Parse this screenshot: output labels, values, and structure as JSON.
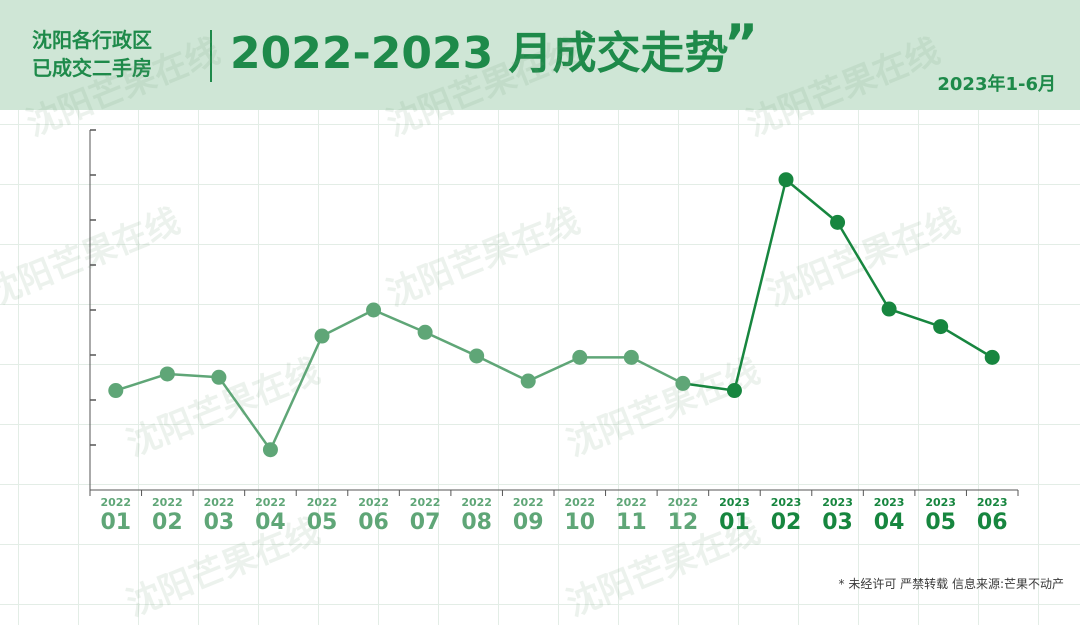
{
  "header": {
    "subject_line1": "沈阳各行政区",
    "subject_line2": "已成交二手房",
    "title": "2022-2023 月成交走势",
    "title_mark": "”",
    "period": "2023年1-6月"
  },
  "footer": {
    "note": "* 未经许可 严禁转载 信息来源:芒果不动产"
  },
  "watermark": {
    "text": "沈阳芒果在线"
  },
  "colors": {
    "band": "#cfe6d6",
    "accent": "#1e8a4a",
    "series_2022": "#5fa677",
    "series_2023": "#17863f",
    "axis": "#555555"
  },
  "chart_data": {
    "type": "line",
    "title": "2022-2023 月成交走势",
    "xlabel": "",
    "ylabel": "",
    "categories": [
      {
        "year": "2022",
        "month": "01"
      },
      {
        "year": "2022",
        "month": "02"
      },
      {
        "year": "2022",
        "month": "03"
      },
      {
        "year": "2022",
        "month": "04"
      },
      {
        "year": "2022",
        "month": "05"
      },
      {
        "year": "2022",
        "month": "06"
      },
      {
        "year": "2022",
        "month": "07"
      },
      {
        "year": "2022",
        "month": "08"
      },
      {
        "year": "2022",
        "month": "09"
      },
      {
        "year": "2022",
        "month": "10"
      },
      {
        "year": "2022",
        "month": "11"
      },
      {
        "year": "2022",
        "month": "12"
      },
      {
        "year": "2023",
        "month": "01"
      },
      {
        "year": "2023",
        "month": "02"
      },
      {
        "year": "2023",
        "month": "03"
      },
      {
        "year": "2023",
        "month": "04"
      },
      {
        "year": "2023",
        "month": "05"
      },
      {
        "year": "2023",
        "month": "06"
      }
    ],
    "series": [
      {
        "values": [
          2.1,
          2.45,
          2.38,
          0.85,
          3.25,
          3.8,
          3.33,
          2.83,
          2.3,
          2.8,
          2.8,
          2.25,
          2.1,
          6.55,
          5.65,
          3.82,
          3.45,
          2.8
        ]
      }
    ],
    "ylim": [
      0,
      7.6
    ],
    "yticks": 8,
    "grid": true,
    "legend": "none"
  }
}
